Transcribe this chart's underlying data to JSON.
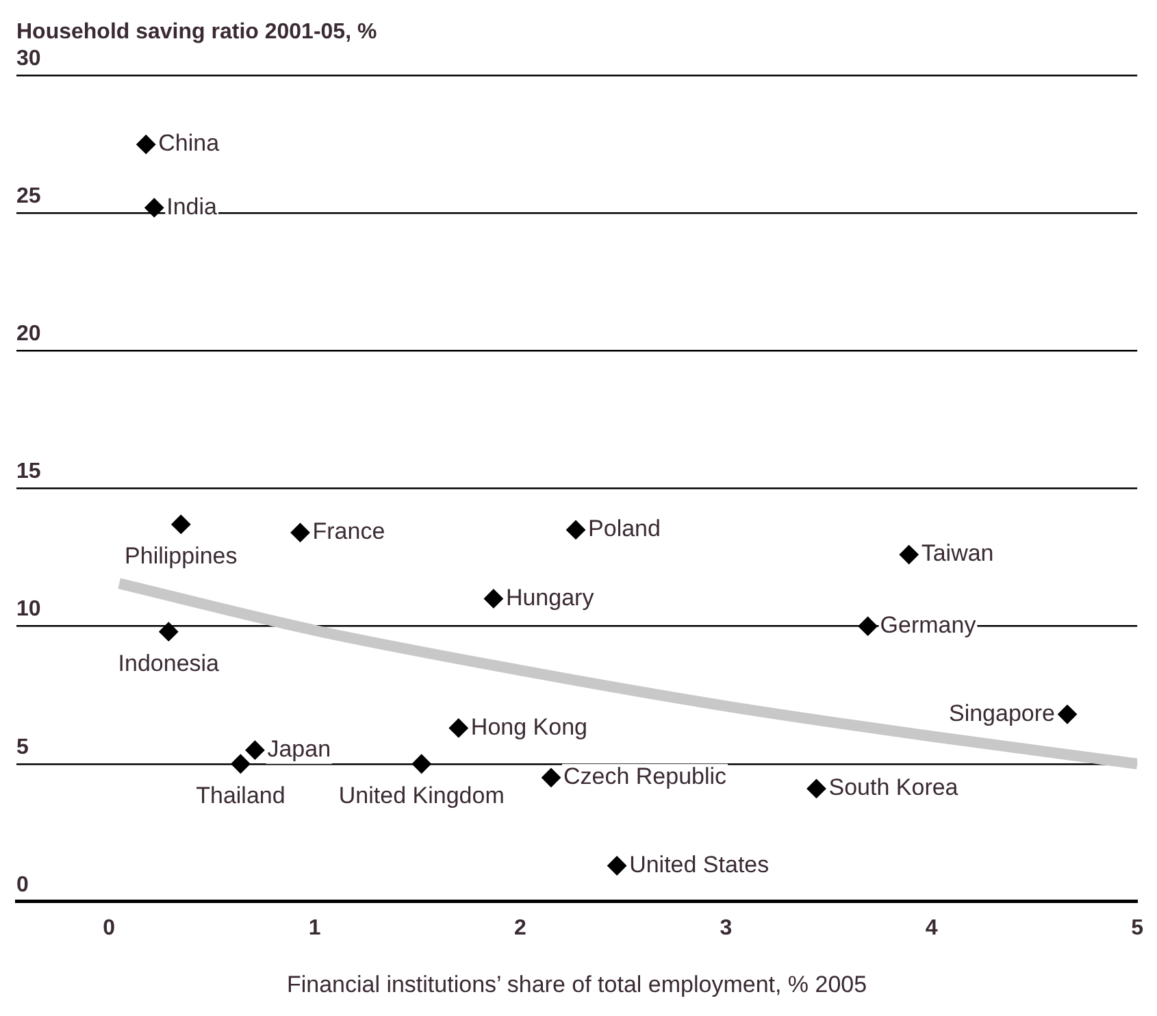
{
  "chart_data": {
    "type": "scatter",
    "ylabel": "Household saving ratio 2001-05, %",
    "xlabel": "Financial institutions’ share of total employment, % 2005",
    "series": [
      {
        "color": "#000000",
        "x": [
          0.18,
          0.22,
          0.35,
          0.93,
          2.27,
          3.89,
          1.87,
          3.69,
          0.29,
          4.66,
          1.7,
          0.71,
          0.64,
          1.52,
          2.15,
          3.44,
          2.47
        ],
        "values": [
          27.5,
          25.2,
          13.7,
          13.4,
          13.5,
          12.6,
          11.0,
          10.0,
          9.8,
          6.8,
          6.3,
          5.5,
          5.0,
          5.0,
          4.5,
          4.1,
          1.3
        ]
      },
      {
        "type": "line",
        "marker": "none",
        "color": "#c8c8c8",
        "x": [
          0.05,
          1,
          2,
          3,
          4,
          5
        ],
        "values": [
          11.55,
          9.85,
          8.4,
          7.1,
          6.0,
          5.0
        ]
      }
    ],
    "annotations": [
      {
        "text": "China",
        "x": 0.18,
        "y": 27.5
      },
      {
        "text": "India",
        "x": 0.22,
        "y": 25.2
      },
      {
        "text": "Philippines",
        "x": 0.35,
        "y": 13.7
      },
      {
        "text": "France",
        "x": 0.93,
        "y": 13.4
      },
      {
        "text": "Poland",
        "x": 2.27,
        "y": 13.5
      },
      {
        "text": "Taiwan",
        "x": 3.89,
        "y": 12.6
      },
      {
        "text": "Hungary",
        "x": 1.87,
        "y": 11.0
      },
      {
        "text": "Germany",
        "x": 3.69,
        "y": 10.0
      },
      {
        "text": "Indonesia",
        "x": 0.29,
        "y": 9.8
      },
      {
        "text": "Singapore",
        "x": 4.66,
        "y": 6.8
      },
      {
        "text": "Hong Kong",
        "x": 1.7,
        "y": 6.3
      },
      {
        "text": "Japan",
        "x": 0.71,
        "y": 5.5
      },
      {
        "text": "Thailand",
        "x": 0.64,
        "y": 5.0
      },
      {
        "text": "United Kingdom",
        "x": 1.52,
        "y": 5.0
      },
      {
        "text": "Czech Republic",
        "x": 2.15,
        "y": 4.5
      },
      {
        "text": "South Korea",
        "x": 3.44,
        "y": 4.1
      },
      {
        "text": "United States",
        "x": 2.47,
        "y": 1.3
      }
    ],
    "xlim": [
      -0.45,
      5
    ],
    "xticks": [
      0,
      1,
      2,
      3,
      4,
      5
    ],
    "ylim": [
      0,
      30
    ],
    "yticks": [
      0,
      5,
      10,
      15,
      20,
      25,
      30
    ],
    "grid": "y",
    "legend": false,
    "marker": "diamond"
  }
}
